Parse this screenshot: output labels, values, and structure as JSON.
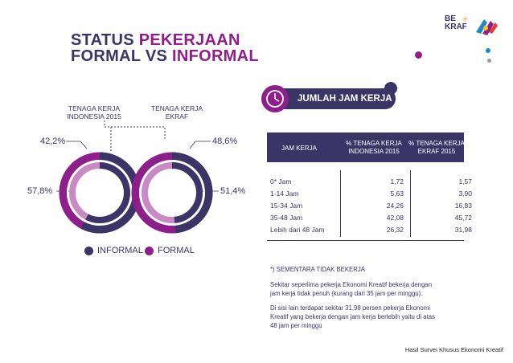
{
  "title": {
    "line1_a": "STATUS ",
    "line1_b": "PEKERJAAN",
    "line2_a": "FORMAL VS ",
    "line2_b": "INFORMAL"
  },
  "logo": {
    "line1": "BE",
    "line2": "KRAF"
  },
  "colors": {
    "informal": "#3b3466",
    "formal": "#8e1f8a",
    "light_formal": "#c78ac2"
  },
  "chart_data": [
    {
      "type": "pie",
      "title": "TENAGA KERJA INDONESIA 2015",
      "slices": [
        {
          "name": "INFORMAL",
          "value": 57.8,
          "label": "57,8%"
        },
        {
          "name": "FORMAL",
          "value": 42.2,
          "label": "42,2%"
        }
      ]
    },
    {
      "type": "pie",
      "title": "TENAGA KERJA EKRAF",
      "slices": [
        {
          "name": "INFORMAL",
          "value": 48.6,
          "label": "48,6%"
        },
        {
          "name": "FORMAL",
          "value": 51.4,
          "label": "51,4%"
        }
      ]
    },
    {
      "type": "table",
      "title": "JUMLAH JAM KERJA",
      "columns": [
        "JAM KERJA",
        "% TENAGA KERJA INDONESIA 2015",
        "% TENAGA KERJA EKRAF 2015"
      ],
      "rows": [
        [
          "0* Jam",
          "1,72",
          "1,57"
        ],
        [
          "1-14 Jam",
          "5,63",
          "3,90"
        ],
        [
          "15-34 Jam",
          "24,26",
          "16,83"
        ],
        [
          "35-48 Jam",
          "42,08",
          "45,72"
        ],
        [
          "Lebih dari 48 Jam",
          "26,32",
          "31,98"
        ]
      ]
    }
  ],
  "donuts": {
    "left_label_l1": "TENAGA KERJA",
    "left_label_l2": "INDONESIA 2015",
    "right_label_l1": "TENAGA KERJA",
    "right_label_l2": "EKRAF",
    "left_formal_pct": "42,2%",
    "left_informal_pct": "57,8%",
    "right_informal_pct": "48,6%",
    "right_formal_pct": "51,4%"
  },
  "legend": {
    "informal": "INFORMAL",
    "formal": "FORMAL"
  },
  "table": {
    "title": "JUMLAH JAM KERJA",
    "h1": "JAM KERJA",
    "h2_l1": "% TENAGA KERJA",
    "h2_l2": "INDONESIA 2015",
    "h3_l1": "% TENAGA KERJA",
    "h3_l2": "EKRAF 2015",
    "rows": [
      {
        "jam": "0* Jam",
        "indo": "1,72",
        "ekraf": "1,57"
      },
      {
        "jam": "1-14 Jam",
        "indo": "5,63",
        "ekraf": "3,90"
      },
      {
        "jam": "15-34 Jam",
        "indo": "24,26",
        "ekraf": "16,83"
      },
      {
        "jam": "35-48 Jam",
        "indo": "42,08",
        "ekraf": "45,72"
      },
      {
        "jam": "Lebih dari 48 Jam",
        "indo": "26,32",
        "ekraf": "31,98"
      }
    ]
  },
  "notes": {
    "footnote": "*) SEMENTARA TIDAK BEKERJA",
    "p1_l1": "Sekitar  seperlima  pekerja Ekonomi Kreatif bekerja dengan",
    "p1_l2": "jam kerja tidak penuh (kurang dari 35 jam per minggu).",
    "p2_l1": "Di sisi lain terdapat sekitar 31,98  persen  pekerja  Ekonomi",
    "p2_l2": "Kreatif yang bekerja dengan jam kerja berlebih yaitu di atas",
    "p2_l3": "48 jam per minggu"
  },
  "source": "Hasil Survei Khusus Ekonomi Kreatif"
}
